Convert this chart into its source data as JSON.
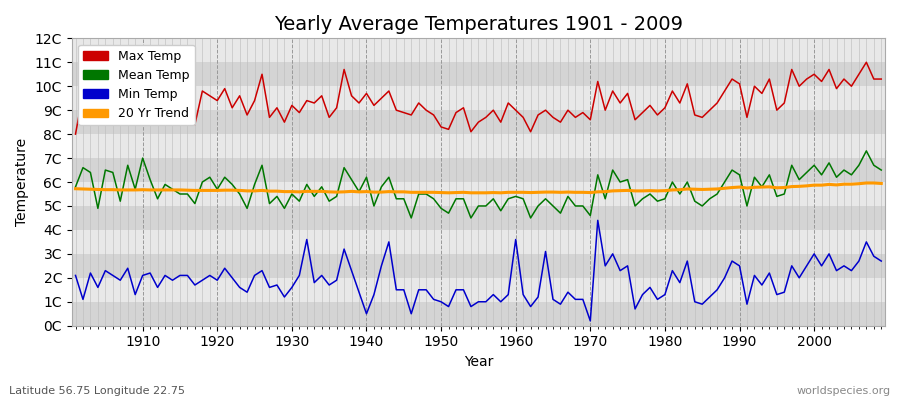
{
  "title": "Yearly Average Temperatures 1901 - 2009",
  "xlabel": "Year",
  "ylabel": "Temperature",
  "footnote_left": "Latitude 56.75 Longitude 22.75",
  "footnote_right": "worldspecies.org",
  "years": [
    1901,
    1902,
    1903,
    1904,
    1905,
    1906,
    1907,
    1908,
    1909,
    1910,
    1911,
    1912,
    1913,
    1914,
    1915,
    1916,
    1917,
    1918,
    1919,
    1920,
    1921,
    1922,
    1923,
    1924,
    1925,
    1926,
    1927,
    1928,
    1929,
    1930,
    1931,
    1932,
    1933,
    1934,
    1935,
    1936,
    1937,
    1938,
    1939,
    1940,
    1941,
    1942,
    1943,
    1944,
    1945,
    1946,
    1947,
    1948,
    1949,
    1950,
    1951,
    1952,
    1953,
    1954,
    1955,
    1956,
    1957,
    1958,
    1959,
    1960,
    1961,
    1962,
    1963,
    1964,
    1965,
    1966,
    1967,
    1968,
    1969,
    1970,
    1971,
    1972,
    1973,
    1974,
    1975,
    1976,
    1977,
    1978,
    1979,
    1980,
    1981,
    1982,
    1983,
    1984,
    1985,
    1986,
    1987,
    1988,
    1989,
    1990,
    1991,
    1992,
    1993,
    1994,
    1995,
    1996,
    1997,
    1998,
    1999,
    2000,
    2001,
    2002,
    2003,
    2004,
    2005,
    2006,
    2007,
    2008,
    2009
  ],
  "max_temp": [
    8.0,
    9.7,
    9.9,
    9.2,
    9.5,
    9.9,
    8.6,
    9.9,
    9.7,
    10.5,
    9.6,
    9.4,
    8.8,
    9.1,
    9.3,
    8.9,
    8.4,
    9.8,
    9.6,
    9.4,
    9.9,
    9.1,
    9.6,
    8.8,
    9.4,
    10.5,
    8.7,
    9.1,
    8.5,
    9.2,
    8.9,
    9.4,
    9.3,
    9.6,
    8.7,
    9.1,
    10.7,
    9.6,
    9.3,
    9.7,
    9.2,
    9.5,
    9.8,
    9.0,
    8.9,
    8.8,
    9.3,
    9.0,
    8.8,
    8.3,
    8.2,
    8.9,
    9.1,
    8.1,
    8.5,
    8.7,
    9.0,
    8.5,
    9.3,
    9.0,
    8.7,
    8.1,
    8.8,
    9.0,
    8.7,
    8.5,
    9.0,
    8.7,
    8.9,
    8.6,
    10.2,
    9.0,
    9.8,
    9.3,
    9.7,
    8.6,
    8.9,
    9.2,
    8.8,
    9.1,
    9.8,
    9.3,
    10.1,
    8.8,
    8.7,
    9.0,
    9.3,
    9.8,
    10.3,
    10.1,
    8.7,
    10.0,
    9.7,
    10.3,
    9.0,
    9.3,
    10.7,
    10.0,
    10.3,
    10.5,
    10.2,
    10.7,
    9.9,
    10.3,
    10.0,
    10.5,
    11.0,
    10.3,
    10.3
  ],
  "mean_temp": [
    5.8,
    6.6,
    6.4,
    4.9,
    6.5,
    6.4,
    5.2,
    6.7,
    5.7,
    7.0,
    6.1,
    5.3,
    5.9,
    5.7,
    5.5,
    5.5,
    5.1,
    6.0,
    6.2,
    5.7,
    6.2,
    5.9,
    5.5,
    4.9,
    5.9,
    6.7,
    5.1,
    5.4,
    4.9,
    5.5,
    5.2,
    5.9,
    5.4,
    5.8,
    5.2,
    5.4,
    6.6,
    6.1,
    5.6,
    6.2,
    5.0,
    5.8,
    6.2,
    5.3,
    5.3,
    4.5,
    5.5,
    5.5,
    5.3,
    4.9,
    4.7,
    5.3,
    5.3,
    4.5,
    5.0,
    5.0,
    5.3,
    4.8,
    5.3,
    5.4,
    5.3,
    4.5,
    5.0,
    5.3,
    5.0,
    4.7,
    5.4,
    5.0,
    5.0,
    4.6,
    6.3,
    5.3,
    6.5,
    6.0,
    6.1,
    5.0,
    5.3,
    5.5,
    5.2,
    5.3,
    6.0,
    5.5,
    6.0,
    5.2,
    5.0,
    5.3,
    5.5,
    6.0,
    6.5,
    6.3,
    5.0,
    6.2,
    5.8,
    6.3,
    5.4,
    5.5,
    6.7,
    6.1,
    6.4,
    6.7,
    6.3,
    6.8,
    6.2,
    6.5,
    6.3,
    6.7,
    7.3,
    6.7,
    6.5
  ],
  "min_temp": [
    2.1,
    1.1,
    2.2,
    1.6,
    2.3,
    2.1,
    1.9,
    2.4,
    1.3,
    2.1,
    2.2,
    1.6,
    2.1,
    1.9,
    2.1,
    2.1,
    1.7,
    1.9,
    2.1,
    1.9,
    2.4,
    2.0,
    1.6,
    1.4,
    2.1,
    2.3,
    1.6,
    1.7,
    1.2,
    1.6,
    2.1,
    3.6,
    1.8,
    2.1,
    1.7,
    1.9,
    3.2,
    2.3,
    1.4,
    0.5,
    1.3,
    2.5,
    3.5,
    1.5,
    1.5,
    0.5,
    1.5,
    1.5,
    1.1,
    1.0,
    0.8,
    1.5,
    1.5,
    0.8,
    1.0,
    1.0,
    1.3,
    1.0,
    1.3,
    3.6,
    1.3,
    0.8,
    1.2,
    3.1,
    1.1,
    0.9,
    1.4,
    1.1,
    1.1,
    0.2,
    4.4,
    2.5,
    3.0,
    2.3,
    2.5,
    0.7,
    1.3,
    1.6,
    1.1,
    1.3,
    2.3,
    1.8,
    2.7,
    1.0,
    0.9,
    1.2,
    1.5,
    2.0,
    2.7,
    2.5,
    0.9,
    2.1,
    1.7,
    2.2,
    1.3,
    1.4,
    2.5,
    2.0,
    2.5,
    3.0,
    2.5,
    3.0,
    2.3,
    2.5,
    2.3,
    2.7,
    3.5,
    2.9,
    2.7
  ],
  "trend": [
    5.72,
    5.71,
    5.7,
    5.69,
    5.68,
    5.68,
    5.67,
    5.67,
    5.67,
    5.68,
    5.67,
    5.67,
    5.67,
    5.67,
    5.67,
    5.66,
    5.65,
    5.65,
    5.65,
    5.65,
    5.66,
    5.66,
    5.65,
    5.63,
    5.63,
    5.65,
    5.62,
    5.62,
    5.6,
    5.6,
    5.59,
    5.61,
    5.61,
    5.61,
    5.59,
    5.58,
    5.59,
    5.61,
    5.59,
    5.6,
    5.58,
    5.58,
    5.6,
    5.59,
    5.59,
    5.57,
    5.57,
    5.57,
    5.57,
    5.56,
    5.55,
    5.56,
    5.57,
    5.55,
    5.55,
    5.55,
    5.56,
    5.55,
    5.57,
    5.57,
    5.57,
    5.56,
    5.57,
    5.58,
    5.58,
    5.57,
    5.58,
    5.57,
    5.57,
    5.56,
    5.59,
    5.6,
    5.63,
    5.64,
    5.65,
    5.63,
    5.63,
    5.64,
    5.63,
    5.64,
    5.67,
    5.68,
    5.71,
    5.7,
    5.69,
    5.7,
    5.71,
    5.74,
    5.77,
    5.79,
    5.75,
    5.78,
    5.79,
    5.8,
    5.76,
    5.77,
    5.81,
    5.82,
    5.84,
    5.87,
    5.87,
    5.9,
    5.88,
    5.91,
    5.91,
    5.93,
    5.96,
    5.96,
    5.94
  ],
  "max_color": "#cc0000",
  "mean_color": "#007700",
  "min_color": "#0000cc",
  "trend_color": "#ff9900",
  "ylim": [
    0,
    12
  ],
  "yticks": [
    0,
    1,
    2,
    3,
    4,
    5,
    6,
    7,
    8,
    9,
    10,
    11,
    12
  ],
  "ytick_labels": [
    "0C",
    "1C",
    "2C",
    "3C",
    "4C",
    "5C",
    "6C",
    "7C",
    "8C",
    "9C",
    "10C",
    "11C",
    "12C"
  ],
  "title_fontsize": 14,
  "axis_fontsize": 10,
  "legend_fontsize": 9,
  "bg_color": "#e0e0e0",
  "band_light": "#e8e8e8",
  "band_dark": "#d4d4d4"
}
